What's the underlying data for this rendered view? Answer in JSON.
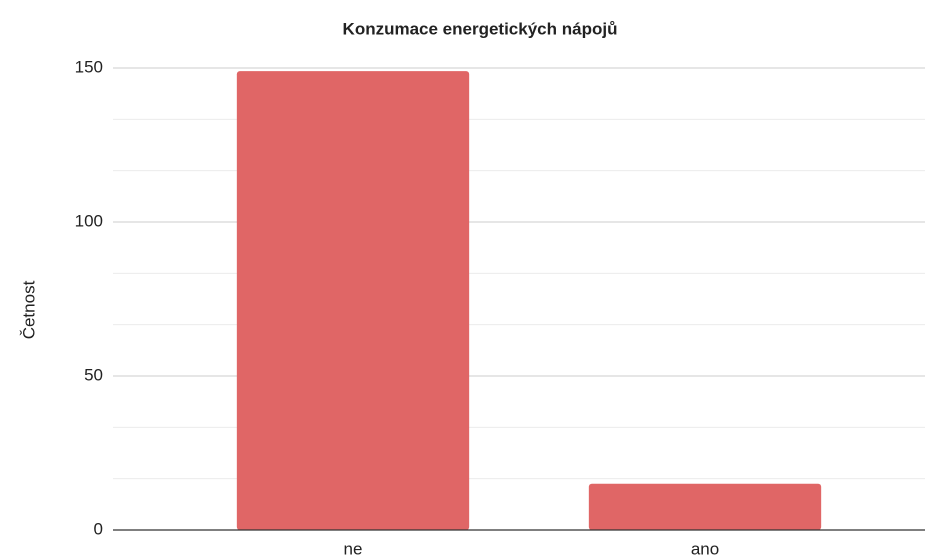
{
  "chart_data": {
    "type": "bar",
    "title": "Konzumace energetických nápojů",
    "y_label": "Četnost",
    "categories": [
      "ne",
      "ano"
    ],
    "values": [
      149,
      15
    ],
    "color": "#e06666",
    "ylim": [
      0,
      150
    ],
    "yticks": [
      0,
      50,
      100,
      150
    ],
    "minor_yticks": [
      16.7,
      33.3,
      66.7,
      83.3,
      116.7,
      133.3
    ],
    "grid": true
  }
}
